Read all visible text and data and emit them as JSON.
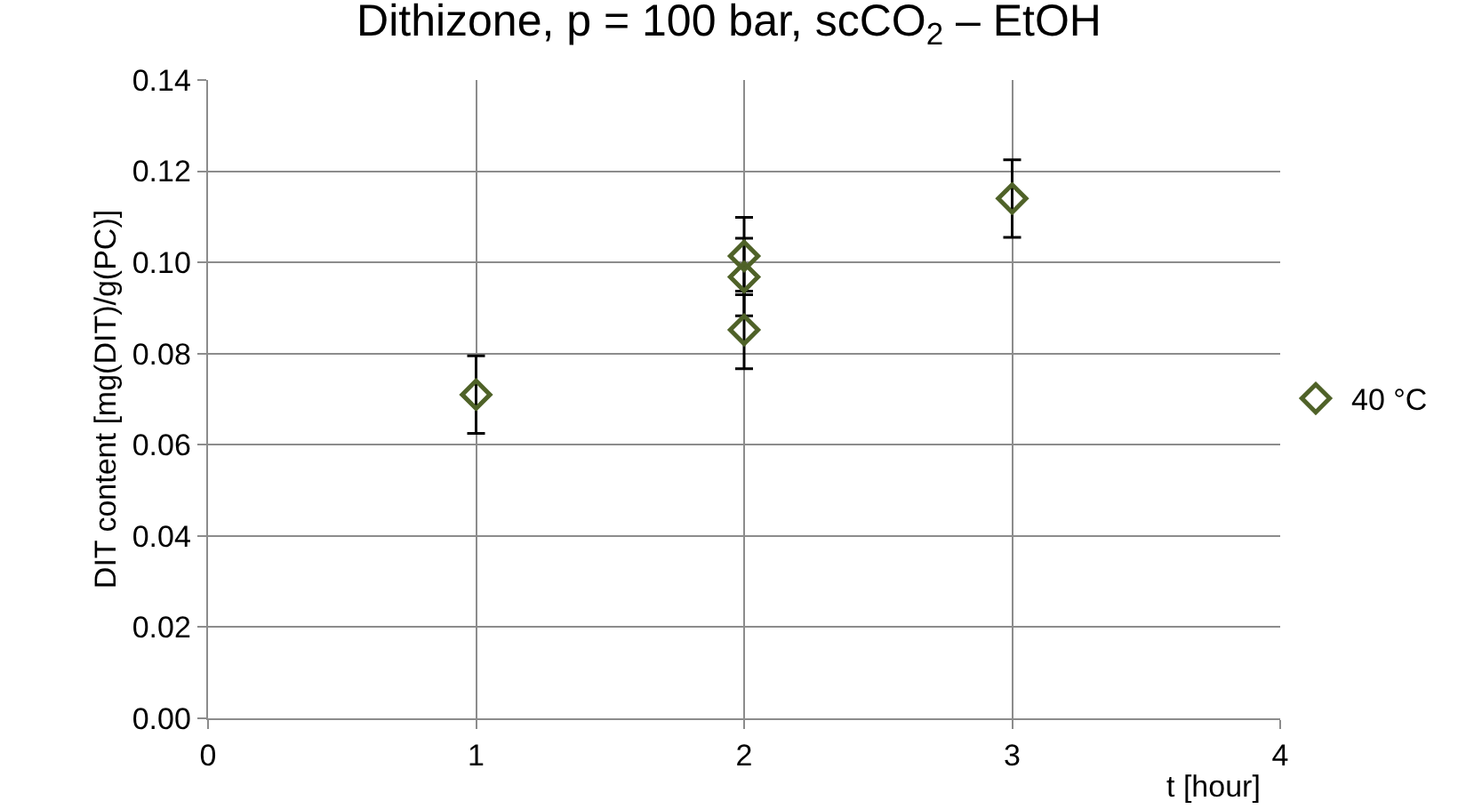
{
  "chart_data": {
    "type": "scatter",
    "title": "Dithizone, p = 100 bar, scCO$_{2}$ – EtOH",
    "xlabel": "t [hour]",
    "ylabel": "DIT content [mg(DIT)/g(PC)]",
    "x": [
      1,
      2,
      2,
      2,
      3
    ],
    "series": [
      {
        "name": "40 °C",
        "color": "#4f6228",
        "values": [
          0.071,
          0.1014,
          0.0968,
          0.0852,
          0.114
        ],
        "errors": [
          0.0085,
          0.0085,
          0.0085,
          0.0085,
          0.0085
        ]
      }
    ],
    "xlim": [
      0,
      4
    ],
    "xticks": [
      0,
      1,
      2,
      3,
      4
    ],
    "ylim": [
      0,
      0.14
    ],
    "yticks": [
      {
        "value": 0,
        "label": "0.00"
      },
      {
        "value": 0.02,
        "label": "0.02"
      },
      {
        "value": 0.04,
        "label": "0.04"
      },
      {
        "value": 0.06,
        "label": "0.06"
      },
      {
        "value": 0.08,
        "label": "0.08"
      },
      {
        "value": 0.1,
        "label": "0.10"
      },
      {
        "value": 0.12,
        "label": "0.12"
      },
      {
        "value": 0.14,
        "label": "0.14"
      }
    ],
    "grid": true,
    "legend": "right",
    "marker": "diamond"
  }
}
